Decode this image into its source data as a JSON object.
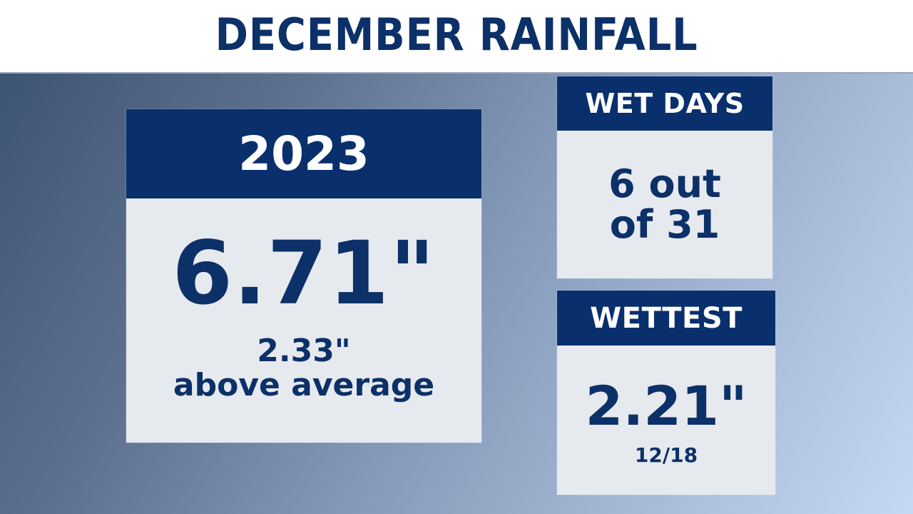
{
  "header": {
    "title": "DECEMBER RAINFALL"
  },
  "main_card": {
    "year": "2023",
    "total": "6.71\"",
    "departure": "2.33\"",
    "departure_label": "above average"
  },
  "wet_days_card": {
    "label": "WET DAYS",
    "line1": "6 out",
    "line2": "of 31"
  },
  "wettest_card": {
    "label": "WETTEST",
    "amount": "2.21\"",
    "date": "12/18"
  },
  "colors": {
    "navy": "#0a2f6d",
    "card_bg": "#e6e9ee",
    "gradient_start": "#3e5474",
    "gradient_end": "#c6d9f2"
  }
}
